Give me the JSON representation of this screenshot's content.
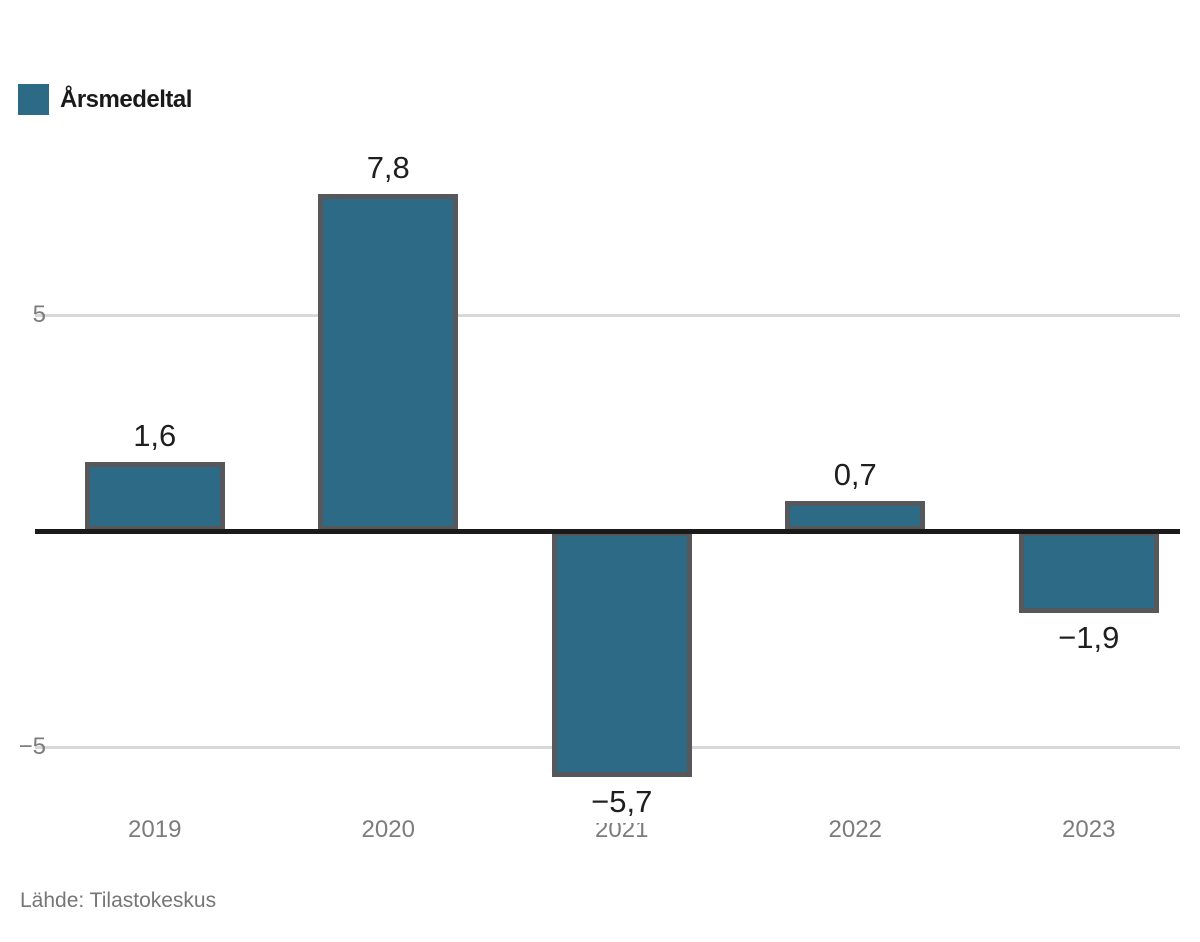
{
  "legend": {
    "label": "Årsmedeltal",
    "swatch_color": "#2d6a85"
  },
  "source": {
    "text": "Lähde: Tilastokeskus"
  },
  "chart_data": {
    "type": "bar",
    "title": "",
    "xlabel": "",
    "ylabel": "",
    "categories": [
      "2019",
      "2020",
      "2021",
      "2022",
      "2023"
    ],
    "values": [
      1.6,
      7.8,
      -5.7,
      0.7,
      -1.9
    ],
    "value_labels": [
      "1,6",
      "7,8",
      "−5,7",
      "0,7",
      "−1,9"
    ],
    "series_name": "Årsmedeltal",
    "ylim": [
      -7.8,
      9.3
    ],
    "yticks": [
      {
        "value": 5,
        "label": "5"
      },
      {
        "value": -5,
        "label": "−5"
      }
    ],
    "grid": "horizontal",
    "legend_position": "top-left",
    "zero_baseline": true,
    "colors": {
      "bar_fill": "#2d6a85",
      "bar_border": "#56585b",
      "zero_line": "#1a1a1a",
      "gridline": "#d8d8d8",
      "tick_text": "#7c7c7c",
      "value_text": "#1f1f1f",
      "legend_text": "#1a1a1a",
      "source_text": "#767676",
      "background": "#ffffff"
    }
  }
}
